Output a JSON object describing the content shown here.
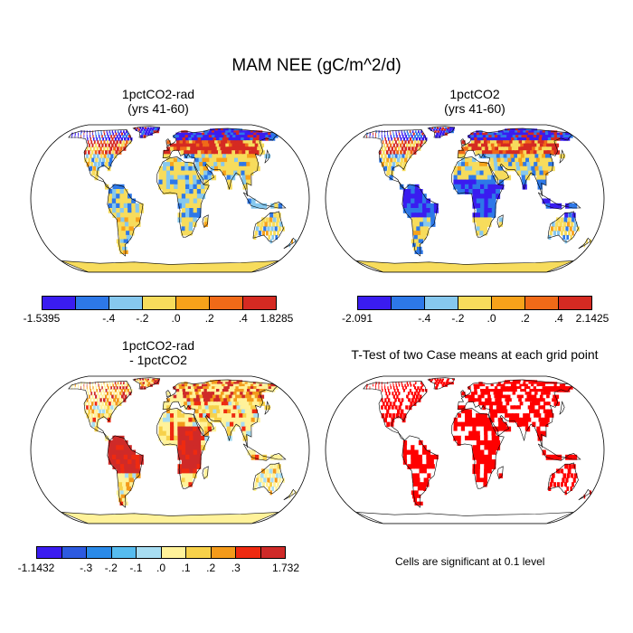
{
  "title": "MAM NEE (gC/m^2/d)",
  "panels": {
    "p1": {
      "title_line1": "1pctCO2-rad",
      "title_line2": "(yrs 41-60)"
    },
    "p2": {
      "title_line1": "1pctCO2",
      "title_line2": "(yrs 41-60)"
    },
    "p3": {
      "title_line1": "1pctCO2-rad",
      "title_line2": "- 1pctCO2"
    },
    "p4": {
      "title_line1": "T-Test of two Case means at each grid point"
    }
  },
  "colorbars": {
    "c1": {
      "colors": [
        "#3a1cf0",
        "#2d78e8",
        "#86c8ee",
        "#f7dc5c",
        "#f7a21a",
        "#f06a18",
        "#d52a22"
      ],
      "labels": [
        "-1.5395",
        "-.4",
        "-.2",
        ".0",
        ".2",
        ".4",
        "1.8285"
      ]
    },
    "c2": {
      "colors": [
        "#3a1cf0",
        "#2d78e8",
        "#86c8ee",
        "#f7dc5c",
        "#f7a21a",
        "#f06a18",
        "#d52a22"
      ],
      "labels": [
        "-2.091",
        "-.4",
        "-.2",
        ".0",
        ".2",
        ".4",
        "2.1425"
      ]
    },
    "c3": {
      "colors": [
        "#3a1cf0",
        "#2d5ae0",
        "#2a8ae8",
        "#56bcef",
        "#a7ddf2",
        "#fff29a",
        "#f7d14a",
        "#f39a1a",
        "#ee2a10",
        "#cf2a28"
      ],
      "labels": [
        "-1.1432",
        "-.3",
        "-.2",
        "-.1",
        ".0",
        ".1",
        ".2",
        ".3",
        "1.732"
      ]
    }
  },
  "note": "Cells are significant at 0.1 level",
  "map_palette": {
    "ocean": "#ffffff",
    "antarctica": "#f7dc5c",
    "ttest_sig": "#ff0000",
    "coast": "#000000"
  }
}
